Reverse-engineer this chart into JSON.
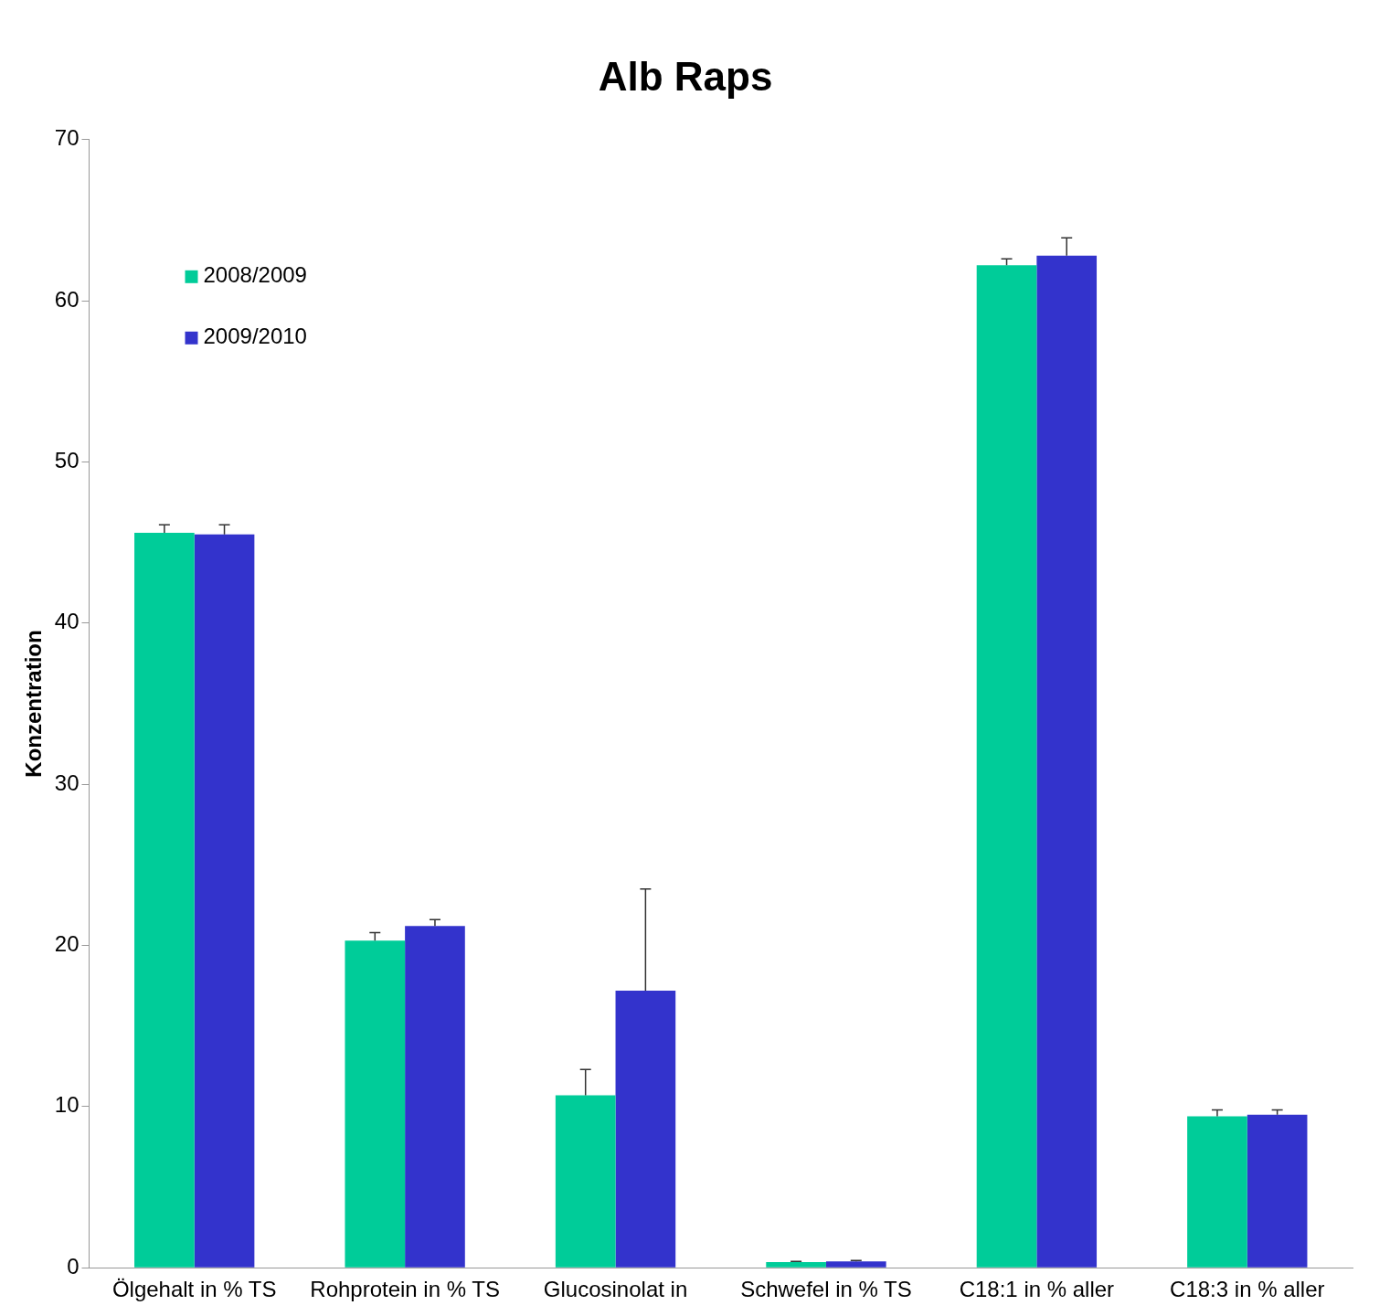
{
  "chart_data": {
    "type": "bar",
    "title": "Alb Raps",
    "ylabel": "Konzentration",
    "categories": [
      "Ölgehalt in % TS",
      "Rohprotein in % TS",
      "Glucosinolat in",
      "Schwefel in % TS",
      "C18:1 in % aller",
      "C18:3 in % aller"
    ],
    "series": [
      {
        "name": "2008/2009",
        "color": "#00cc99",
        "values": [
          45.6,
          20.3,
          10.7,
          0.35,
          62.2,
          9.4
        ],
        "errors": [
          [
            45.6,
            46.1
          ],
          [
            20.3,
            20.8
          ],
          [
            10.7,
            12.3
          ],
          [
            0.35,
            0.4
          ],
          [
            62.2,
            62.6
          ],
          [
            9.4,
            9.8
          ]
        ]
      },
      {
        "name": "2009/2010",
        "color": "#3333cc",
        "values": [
          45.5,
          21.2,
          17.2,
          0.4,
          62.8,
          9.5
        ],
        "errors": [
          [
            45.5,
            46.1
          ],
          [
            21.2,
            21.6
          ],
          [
            17.2,
            23.5
          ],
          [
            0.4,
            0.45
          ],
          [
            62.8,
            63.9
          ],
          [
            9.5,
            9.8
          ]
        ]
      }
    ],
    "ylim": [
      0,
      70
    ],
    "yticks": [
      0,
      10,
      20,
      30,
      40,
      50,
      60,
      70
    ],
    "grid": false,
    "legend": "top left"
  }
}
